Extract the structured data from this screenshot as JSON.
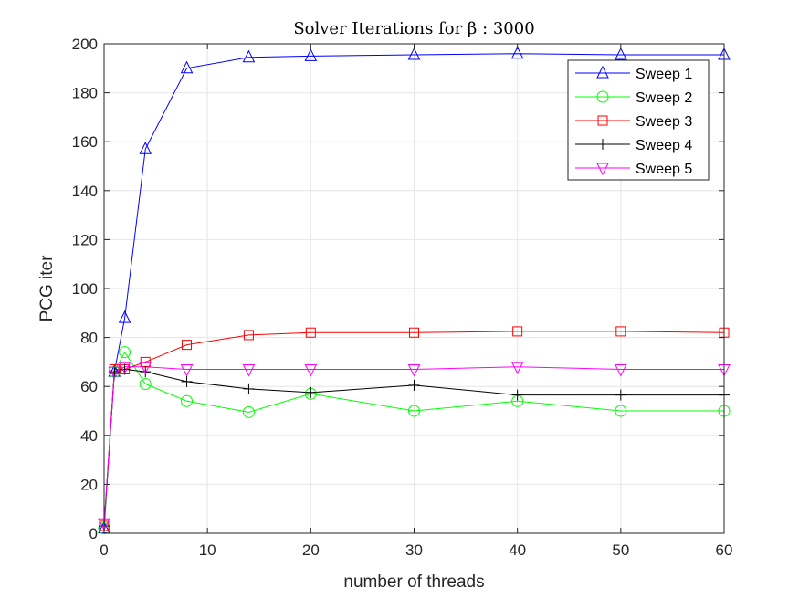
{
  "chart_data": {
    "type": "line",
    "title": "Solver Iterations for β : 3000",
    "xlabel": "number of threads",
    "ylabel": "PCG iter",
    "xlim": [
      0,
      60
    ],
    "ylim": [
      0,
      200
    ],
    "xticks": [
      0,
      10,
      20,
      30,
      40,
      50,
      60
    ],
    "yticks": [
      0,
      20,
      40,
      60,
      80,
      100,
      120,
      140,
      160,
      180,
      200
    ],
    "grid": true,
    "legend_position": "top-right",
    "x": [
      0,
      1,
      2,
      4,
      8,
      14,
      20,
      30,
      40,
      50,
      60
    ],
    "series": [
      {
        "name": "Sweep 1",
        "color": "#0000ff",
        "marker": "triangle-up",
        "values": [
          2,
          66,
          88,
          157,
          190,
          194.5,
          195,
          195.5,
          196,
          195.5,
          195.5
        ]
      },
      {
        "name": "Sweep 2",
        "color": "#00ff00",
        "marker": "circle",
        "values": [
          2,
          66,
          74,
          61,
          54,
          49.5,
          57,
          50,
          54,
          50,
          50
        ]
      },
      {
        "name": "Sweep 3",
        "color": "#ff0000",
        "marker": "square",
        "values": [
          3,
          67,
          67,
          70,
          77,
          81,
          82,
          82,
          82.5,
          82.5,
          82
        ]
      },
      {
        "name": "Sweep 4",
        "color": "#000000",
        "marker": "plus",
        "values": [
          3,
          66,
          67,
          66,
          62,
          59,
          57.5,
          60.5,
          56.5,
          56.5,
          56.5
        ]
      },
      {
        "name": "Sweep 5",
        "color": "#ff00ff",
        "marker": "triangle-down",
        "values": [
          4,
          66,
          68,
          68,
          67,
          67,
          67,
          67,
          68,
          67,
          67
        ]
      }
    ]
  }
}
